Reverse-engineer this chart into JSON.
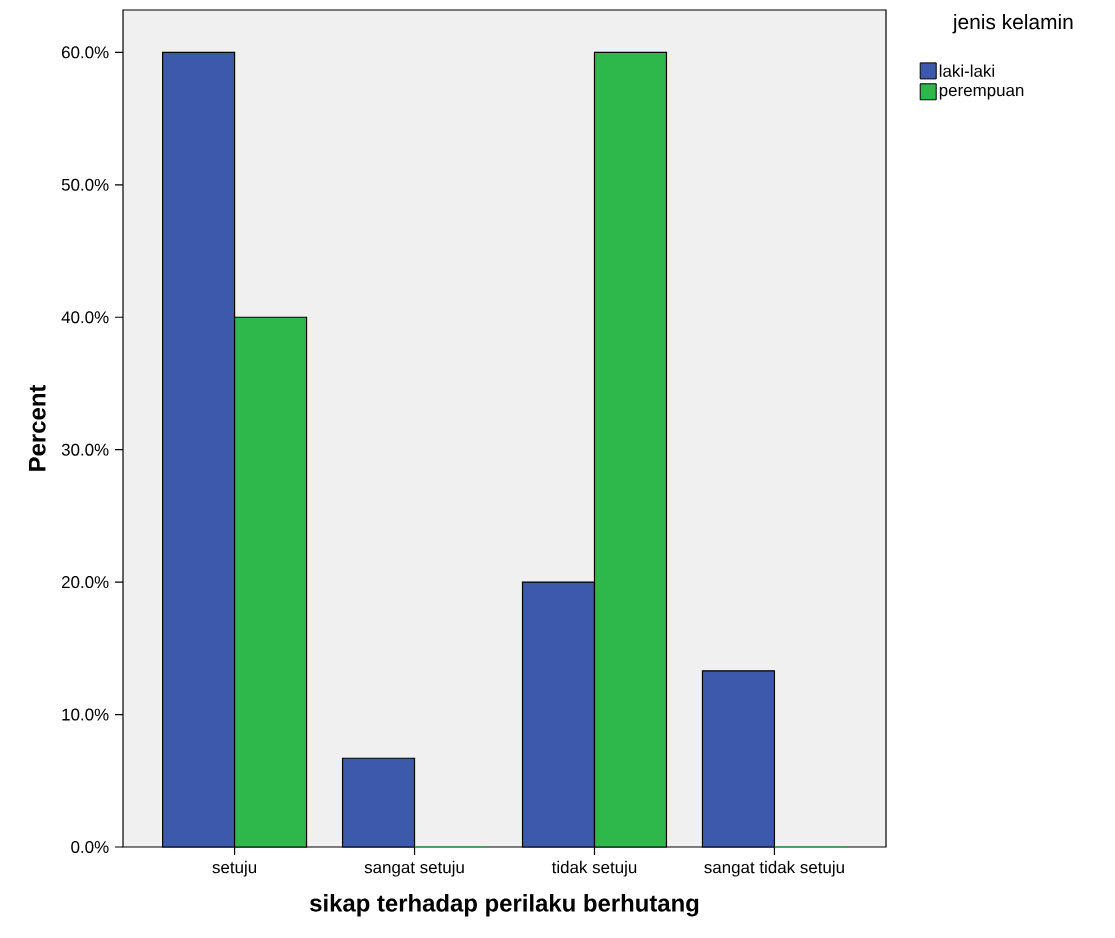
{
  "chart_data": {
    "type": "bar",
    "xlabel": "sikap terhadap perilaku berhutang",
    "ylabel": "Percent",
    "legend_title": "jenis kelamin",
    "categories": [
      "setuju",
      "sangat setuju",
      "tidak setuju",
      "sangat tidak setuju"
    ],
    "series": [
      {
        "name": "laki-laki",
        "color": "#3d59ab",
        "values": [
          60,
          6.7,
          20,
          13.3
        ]
      },
      {
        "name": "perempuan",
        "color": "#2fb84a",
        "values": [
          40,
          0,
          60,
          0
        ]
      }
    ],
    "ylim": [
      0,
      63.2
    ],
    "yticks": [
      {
        "value": 0,
        "label": "0.0%"
      },
      {
        "value": 10,
        "label": "10.0%"
      },
      {
        "value": 20,
        "label": "20.0%"
      },
      {
        "value": 30,
        "label": "30.0%"
      },
      {
        "value": 40,
        "label": "40.0%"
      },
      {
        "value": 50,
        "label": "50.0%"
      },
      {
        "value": 60,
        "label": "60.0%"
      }
    ],
    "grid": false,
    "legend": "top right"
  }
}
